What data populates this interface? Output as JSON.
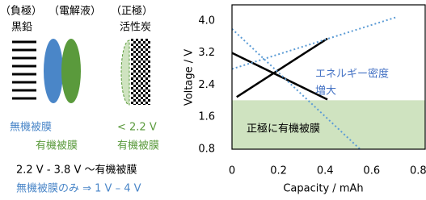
{
  "diagram": {
    "labels": {
      "anode": "（負極）",
      "electrolyte": "（電解液）",
      "cathode": "（正極）",
      "graphite": "黒鉛",
      "carbon": "活性炭",
      "inorganic_film": "無機被膜",
      "organic_film": "有機被膜",
      "cathode_voltage": "< 2.2 V",
      "cathode_film": "有機被膜",
      "range_organic": "2.2 V - 3.8 V ～有機被膜",
      "range_inorganic": "無機被膜のみ ⇒ 1 V – 4 V"
    }
  },
  "chart_data": {
    "type": "line",
    "x_label": "Capacity / mAh",
    "y_label": "Voltage / V",
    "xlim": [
      0,
      0.83
    ],
    "xticks": [
      0,
      0.2,
      0.4,
      0.6,
      0.8
    ],
    "ylim": [
      0.8,
      4.4
    ],
    "yticks": [
      {
        "value": 0.8,
        "label": "0.8"
      },
      {
        "value": 1.6,
        "label": "1.6"
      },
      {
        "value": 2.4,
        "label": "2.4"
      },
      {
        "value": 3.2,
        "label": "3.2"
      },
      {
        "value": 4.0,
        "label": "4.0"
      }
    ],
    "series": [
      {
        "color": "#000000",
        "style": "solid",
        "x": [
          0,
          0.41
        ],
        "values": [
          3.2,
          2.04
        ]
      },
      {
        "color": "#000000",
        "style": "solid",
        "x": [
          0.02,
          0.41
        ],
        "values": [
          2.1,
          3.56
        ]
      },
      {
        "color": "#5b9bd5",
        "style": "dotted",
        "x": [
          0,
          0.71
        ],
        "values": [
          2.8,
          4.1
        ]
      },
      {
        "color": "#5b9bd5",
        "style": "dotted",
        "x": [
          0,
          0.55
        ],
        "values": [
          3.8,
          0.8
        ]
      }
    ],
    "region": {
      "y": [
        0.8,
        2.02
      ],
      "color": "#cfe3c0",
      "label": "正極に有機被膜"
    },
    "annotations": [
      {
        "text": "エネルギー密度",
        "color": "#4472c4"
      },
      {
        "text": "増大",
        "color": "#4472c4"
      }
    ]
  }
}
